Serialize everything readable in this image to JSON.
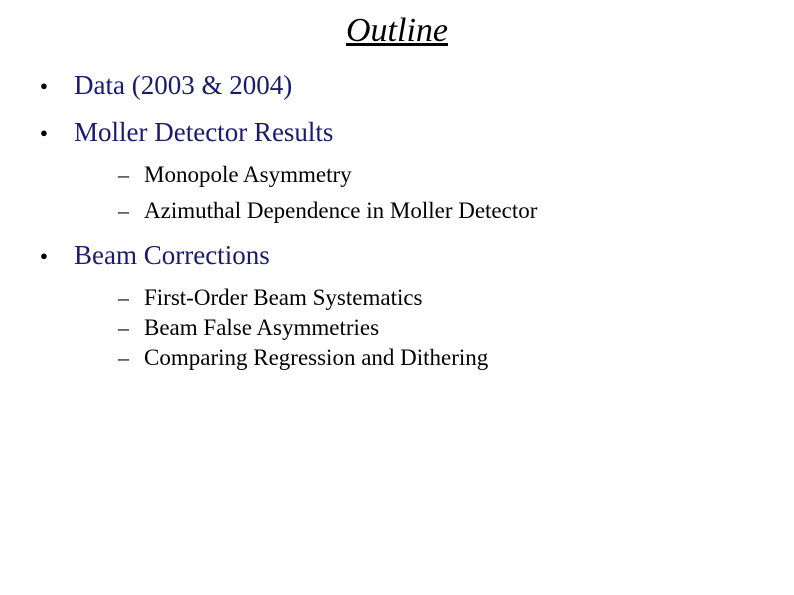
{
  "title": "Outline",
  "title_style": {
    "fontsize": 34,
    "italic": true,
    "underline": true,
    "color": "#000000",
    "align": "center"
  },
  "colors": {
    "background": "#ffffff",
    "level1_text": "#1a1a6e",
    "level2_text": "#000000",
    "bullet": "#000000"
  },
  "typography": {
    "family": "Times New Roman",
    "level1_fontsize": 27,
    "level2_fontsize": 23,
    "bullet_l1_glyph": "●",
    "bullet_l2_glyph": "–"
  },
  "items": [
    {
      "label": "Data (2003 & 2004)",
      "children": []
    },
    {
      "label": "Moller Detector Results",
      "children": [
        {
          "label": "Monopole Asymmetry"
        },
        {
          "label": "Azimuthal Dependence in Moller Detector"
        }
      ],
      "children_spacing": "loose"
    },
    {
      "label": "Beam Corrections",
      "children": [
        {
          "label": "First-Order Beam Systematics"
        },
        {
          "label": "Beam False Asymmetries"
        },
        {
          "label": "Comparing Regression and Dithering"
        }
      ],
      "children_spacing": "tight"
    }
  ]
}
